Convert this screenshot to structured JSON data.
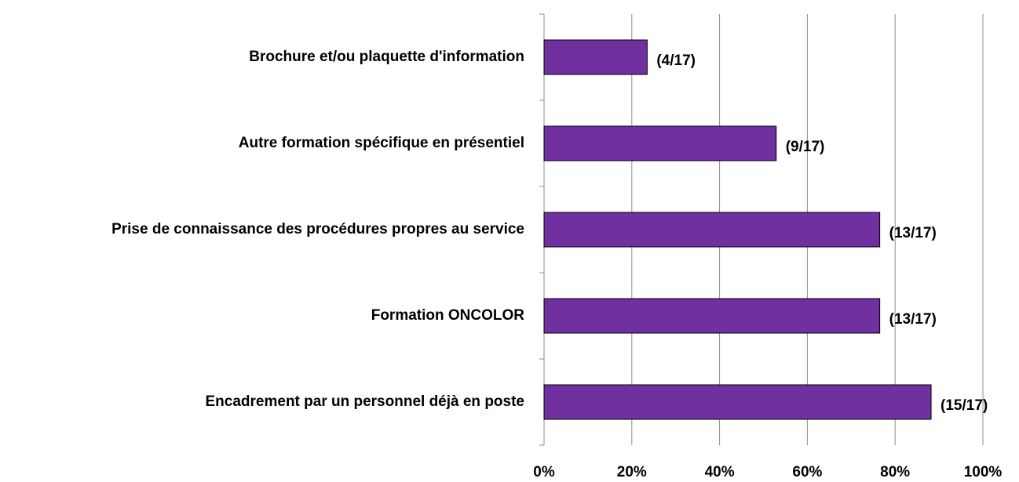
{
  "chart_data": {
    "type": "barh",
    "categories": [
      "Brochure et/ou plaquette d'information",
      "Autre formation spécifique en présentiel",
      "Prise de connaissance des procédures propres au service",
      "Formation ONCOLOR",
      "Encadrement par un personnel déjà en poste"
    ],
    "values": [
      23.5,
      52.9,
      76.5,
      76.5,
      88.2
    ],
    "value_labels": [
      "(4/17)",
      "(9/17)",
      "(13/17)",
      "(13/17)",
      "(15/17)"
    ],
    "color": "#7030a0",
    "xlim": [
      0,
      100
    ],
    "xticks": [
      {
        "value": 0,
        "label": "0%"
      },
      {
        "value": 20,
        "label": "20%"
      },
      {
        "value": 40,
        "label": "40%"
      },
      {
        "value": 60,
        "label": "60%"
      },
      {
        "value": 80,
        "label": "80%"
      },
      {
        "value": 100,
        "label": "100%"
      }
    ],
    "grid": true
  }
}
